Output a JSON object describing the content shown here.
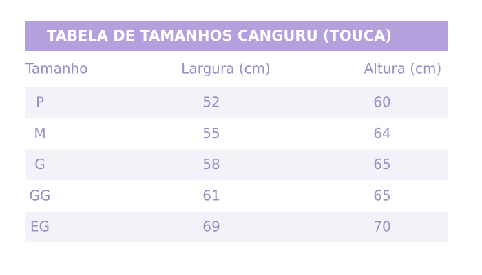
{
  "table": {
    "title": "TABELA DE TAMANHOS CANGURU (TOUCA)",
    "columns": [
      "Tamanho",
      "Largura (cm)",
      "Altura (cm)"
    ],
    "rows": [
      [
        "P",
        52,
        60
      ],
      [
        "M",
        55,
        64
      ],
      [
        "G",
        58,
        65
      ],
      [
        "GG",
        61,
        65
      ],
      [
        "EG",
        69,
        70
      ]
    ]
  }
}
